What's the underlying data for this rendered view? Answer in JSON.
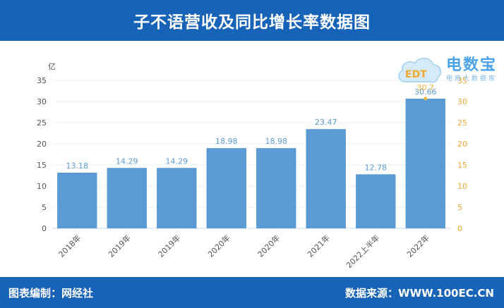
{
  "header": {
    "title": "子不语营收及同比增长率数据图"
  },
  "footer": {
    "left": "图表编制：网经社",
    "right": "数据来源：WWW.100EC.CN"
  },
  "logo": {
    "text": "电数宝",
    "sub": "电商大数据库",
    "mark": "EDT"
  },
  "colors": {
    "bar": "#5b9bd5",
    "line": "#f0b840",
    "axis_right": "#f0a830",
    "header_bg": "#1763b8"
  },
  "chart_data": {
    "type": "bar",
    "ylabel": "亿",
    "ylim": [
      0,
      35
    ],
    "yticks": [
      0,
      5,
      10,
      15,
      20,
      25,
      30,
      35
    ],
    "y2ticks": [
      0,
      5,
      10,
      15,
      20,
      25,
      30,
      35
    ],
    "grid": true,
    "categories": [
      "2018年",
      "2019年",
      "2019年",
      "2020年",
      "2020年",
      "2021年",
      "2022上半年",
      "2022年"
    ],
    "series": [
      {
        "values": [
          13.18,
          14.29,
          14.29,
          18.98,
          18.98,
          23.47,
          12.78,
          30.66
        ],
        "labels": [
          "13.18",
          "14.29",
          "14.29",
          "18.98",
          "18.98",
          "23.47",
          "12.78",
          "30.66"
        ]
      }
    ],
    "line_series": {
      "x_index": 7,
      "value": 30.7,
      "label": "30.7"
    }
  }
}
